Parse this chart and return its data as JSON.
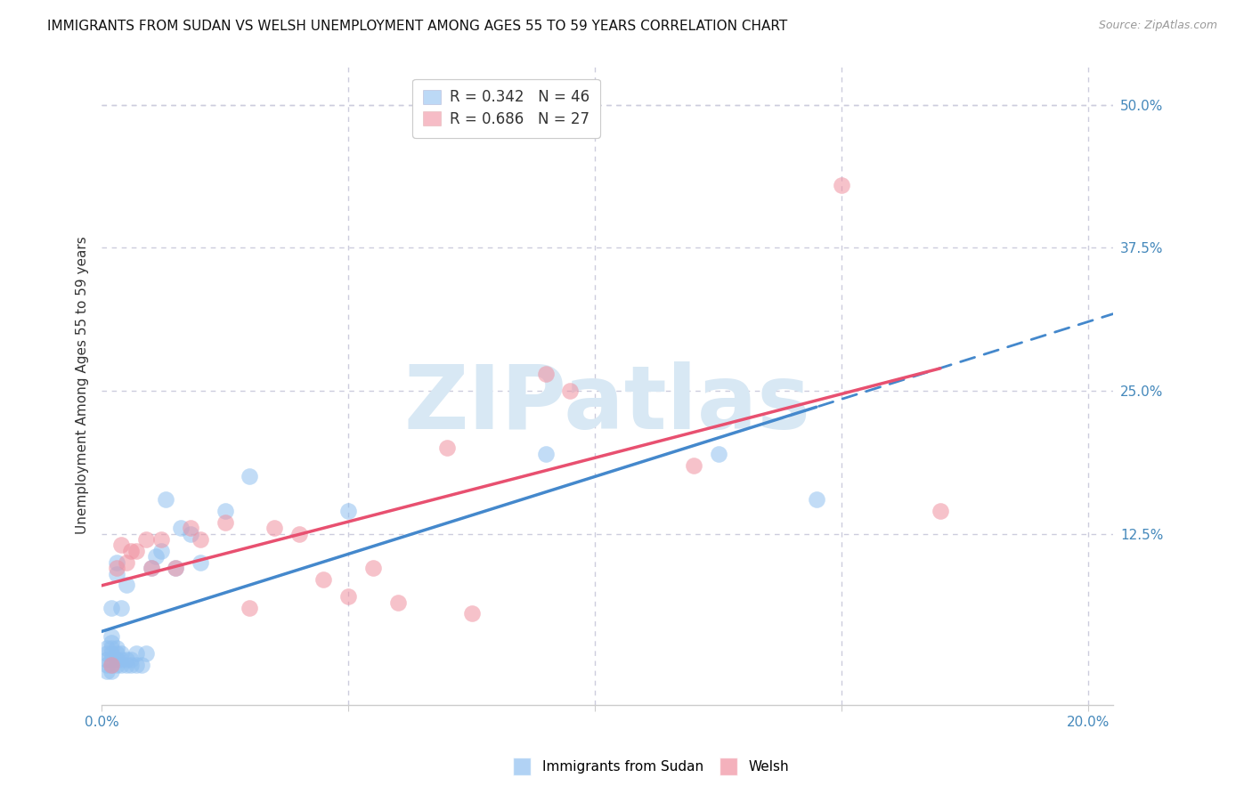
{
  "title": "IMMIGRANTS FROM SUDAN VS WELSH UNEMPLOYMENT AMONG AGES 55 TO 59 YEARS CORRELATION CHART",
  "source": "Source: ZipAtlas.com",
  "ylabel": "Unemployment Among Ages 55 to 59 years",
  "legend_label1": "Immigrants from Sudan",
  "legend_label2": "Welsh",
  "legend_R1": "R = 0.342",
  "legend_N1": "N = 46",
  "legend_R2": "R = 0.686",
  "legend_N2": "N = 27",
  "xlim": [
    0.0,
    0.205
  ],
  "ylim": [
    -0.025,
    0.535
  ],
  "color_blue": "#90C0F0",
  "color_pink": "#F090A0",
  "color_blue_line": "#4488CC",
  "color_pink_line": "#E85070",
  "grid_color": "#CCCCDD",
  "background_color": "#FFFFFF",
  "title_fontsize": 11,
  "tick_fontsize": 11,
  "watermark_color": "#D8E8F4",
  "watermark_fontsize": 72,
  "blue_scatter_x": [
    0.001,
    0.001,
    0.001,
    0.001,
    0.001,
    0.002,
    0.002,
    0.002,
    0.002,
    0.002,
    0.002,
    0.002,
    0.002,
    0.003,
    0.003,
    0.003,
    0.003,
    0.003,
    0.003,
    0.004,
    0.004,
    0.004,
    0.004,
    0.005,
    0.005,
    0.005,
    0.006,
    0.006,
    0.007,
    0.007,
    0.008,
    0.009,
    0.01,
    0.011,
    0.012,
    0.013,
    0.015,
    0.016,
    0.018,
    0.02,
    0.025,
    0.03,
    0.05,
    0.09,
    0.125,
    0.145
  ],
  "blue_scatter_y": [
    0.005,
    0.01,
    0.015,
    0.02,
    0.025,
    0.005,
    0.01,
    0.015,
    0.02,
    0.025,
    0.03,
    0.035,
    0.06,
    0.01,
    0.015,
    0.02,
    0.025,
    0.09,
    0.1,
    0.01,
    0.015,
    0.02,
    0.06,
    0.01,
    0.015,
    0.08,
    0.01,
    0.015,
    0.01,
    0.02,
    0.01,
    0.02,
    0.095,
    0.105,
    0.11,
    0.155,
    0.095,
    0.13,
    0.125,
    0.1,
    0.145,
    0.175,
    0.145,
    0.195,
    0.195,
    0.155
  ],
  "pink_scatter_x": [
    0.002,
    0.003,
    0.004,
    0.005,
    0.006,
    0.007,
    0.009,
    0.01,
    0.012,
    0.015,
    0.018,
    0.02,
    0.025,
    0.03,
    0.035,
    0.04,
    0.045,
    0.05,
    0.055,
    0.06,
    0.07,
    0.075,
    0.09,
    0.095,
    0.12,
    0.15,
    0.17
  ],
  "pink_scatter_y": [
    0.01,
    0.095,
    0.115,
    0.1,
    0.11,
    0.11,
    0.12,
    0.095,
    0.12,
    0.095,
    0.13,
    0.12,
    0.135,
    0.06,
    0.13,
    0.125,
    0.085,
    0.07,
    0.095,
    0.065,
    0.2,
    0.055,
    0.265,
    0.25,
    0.185,
    0.43,
    0.145
  ]
}
